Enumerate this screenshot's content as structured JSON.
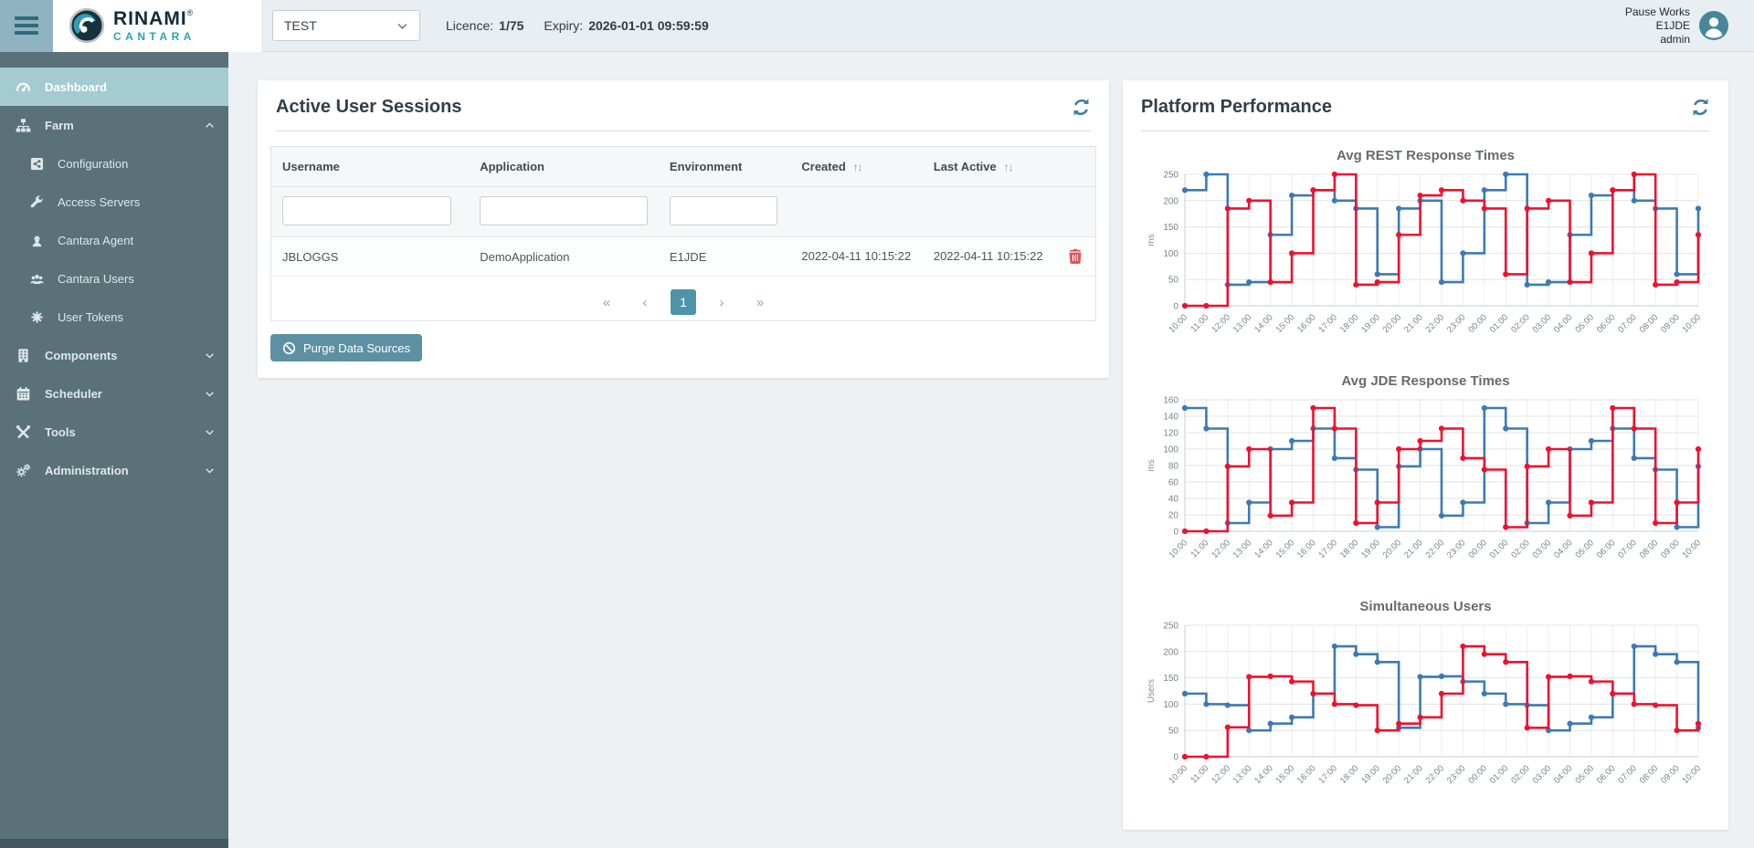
{
  "topbar": {
    "logo": {
      "line1": "RINAMI",
      "registered": "®",
      "line2": "CANTARA"
    },
    "environment_select": {
      "value": "TEST"
    },
    "licence_label": "Licence:",
    "licence_value": "1/75",
    "expiry_label": "Expiry:",
    "expiry_value": "2026-01-01 09:59:59",
    "user": {
      "line1": "Pause Works",
      "line2": "E1JDE",
      "line3": "admin"
    }
  },
  "sidebar": {
    "items": [
      {
        "label": "Dashboard",
        "icon": "gauge-icon",
        "active": true
      },
      {
        "label": "Farm",
        "icon": "sitemap-icon",
        "expanded": true
      },
      {
        "label": "Configuration",
        "icon": "share-square-icon",
        "child": true
      },
      {
        "label": "Access Servers",
        "icon": "wrench-icon",
        "child": true
      },
      {
        "label": "Cantara Agent",
        "icon": "agent-icon",
        "child": true
      },
      {
        "label": "Cantara Users",
        "icon": "users-icon",
        "child": true
      },
      {
        "label": "User Tokens",
        "icon": "token-icon",
        "child": true
      },
      {
        "label": "Components",
        "icon": "building-icon",
        "collapsed": true
      },
      {
        "label": "Scheduler",
        "icon": "calendar-icon",
        "collapsed": true
      },
      {
        "label": "Tools",
        "icon": "tools-icon",
        "collapsed": true
      },
      {
        "label": "Administration",
        "icon": "cogs-icon",
        "collapsed": true
      }
    ]
  },
  "sessions_card": {
    "title": "Active User Sessions",
    "columns": {
      "username": "Username",
      "application": "Application",
      "environment": "Environment",
      "created": "Created",
      "last_active": "Last Active"
    },
    "sort_glyph": "↑↓",
    "rows": [
      {
        "username": "JBLOGGS",
        "application": "DemoApplication",
        "environment": "E1JDE",
        "created": "2022-04-11 10:15:22",
        "last_active": "2022-04-11 10:15:22"
      }
    ],
    "pagination": {
      "first": "«",
      "prev": "‹",
      "page": "1",
      "next": "›",
      "last": "»"
    },
    "purge_button_label": "Purge Data Sources"
  },
  "performance_card": {
    "title": "Platform Performance"
  },
  "chart_data": [
    {
      "type": "line",
      "step": true,
      "title": "Avg REST Response Times",
      "xlabel": "",
      "ylabel": "ms",
      "ylim": [
        0,
        250
      ],
      "ytick_step": 50,
      "grid": true,
      "legend": "none",
      "x": [
        "10:00",
        "11:00",
        "12:00",
        "13:00",
        "14:00",
        "15:00",
        "16:00",
        "17:00",
        "18:00",
        "19:00",
        "20:00",
        "21:00",
        "22:00",
        "23:00",
        "00:00",
        "01:00",
        "02:00",
        "03:00",
        "04:00",
        "05:00",
        "06:00",
        "07:00",
        "08:00",
        "09:00",
        "10:00"
      ],
      "series": [
        {
          "name": "series-blue",
          "color": "#3d7ab4",
          "values": [
            220,
            250,
            40,
            45,
            135,
            210,
            220,
            200,
            185,
            60,
            185,
            200,
            45,
            100,
            220,
            250,
            40,
            45,
            135,
            210,
            220,
            200,
            185,
            60,
            185
          ]
        },
        {
          "name": "series-red",
          "color": "#f0102f",
          "values": [
            0,
            0,
            185,
            200,
            45,
            100,
            220,
            250,
            40,
            45,
            135,
            210,
            220,
            200,
            185,
            60,
            185,
            200,
            45,
            100,
            220,
            250,
            40,
            45,
            135
          ]
        }
      ]
    },
    {
      "type": "line",
      "step": true,
      "title": "Avg JDE Response Times",
      "xlabel": "",
      "ylabel": "ms",
      "ylim": [
        0,
        160
      ],
      "ytick_step": 20,
      "grid": true,
      "legend": "none",
      "x": [
        "10:00",
        "11:00",
        "12:00",
        "13:00",
        "14:00",
        "15:00",
        "16:00",
        "17:00",
        "18:00",
        "19:00",
        "20:00",
        "21:00",
        "22:00",
        "23:00",
        "00:00",
        "01:00",
        "02:00",
        "03:00",
        "04:00",
        "05:00",
        "06:00",
        "07:00",
        "08:00",
        "09:00",
        "10:00"
      ],
      "series": [
        {
          "name": "series-blue",
          "color": "#3d7ab4",
          "values": [
            150,
            125,
            10,
            35,
            100,
            110,
            125,
            89,
            75,
            5,
            79,
            100,
            19,
            35,
            150,
            125,
            10,
            35,
            100,
            110,
            125,
            89,
            75,
            5,
            79
          ]
        },
        {
          "name": "series-red",
          "color": "#f0102f",
          "values": [
            0,
            0,
            79,
            100,
            19,
            35,
            150,
            125,
            10,
            35,
            100,
            110,
            125,
            89,
            75,
            5,
            79,
            100,
            19,
            35,
            150,
            125,
            10,
            35,
            100
          ]
        }
      ]
    },
    {
      "type": "line",
      "step": true,
      "title": "Simultaneous Users",
      "xlabel": "",
      "ylabel": "Users",
      "ylim": [
        0,
        250
      ],
      "ytick_step": 50,
      "grid": true,
      "legend": "none",
      "x": [
        "10:00",
        "11:00",
        "12:00",
        "13:00",
        "14:00",
        "15:00",
        "16:00",
        "17:00",
        "18:00",
        "19:00",
        "20:00",
        "21:00",
        "22:00",
        "23:00",
        "00:00",
        "01:00",
        "02:00",
        "03:00",
        "04:00",
        "05:00",
        "06:00",
        "07:00",
        "08:00",
        "09:00",
        "10:00"
      ],
      "series": [
        {
          "name": "series-blue",
          "color": "#3d7ab4",
          "values": [
            120,
            100,
            98,
            50,
            63,
            75,
            120,
            210,
            195,
            180,
            55,
            152,
            153,
            143,
            120,
            100,
            98,
            50,
            63,
            75,
            120,
            210,
            195,
            180,
            55
          ]
        },
        {
          "name": "series-red",
          "color": "#f0102f",
          "values": [
            0,
            0,
            56,
            152,
            153,
            143,
            120,
            100,
            98,
            50,
            63,
            75,
            120,
            210,
            195,
            180,
            55,
            152,
            153,
            143,
            120,
            100,
            98,
            50,
            63
          ]
        }
      ]
    }
  ],
  "colors": {
    "accent_teal": "#4f93a8",
    "sidebar_bg": "#5a7179",
    "sidebar_active_bg": "#a3cbd1",
    "chart_blue": "#3d7ab4",
    "chart_red": "#f0102f",
    "danger_red": "#dd5658",
    "topbar_bg": "#e8eef1"
  }
}
